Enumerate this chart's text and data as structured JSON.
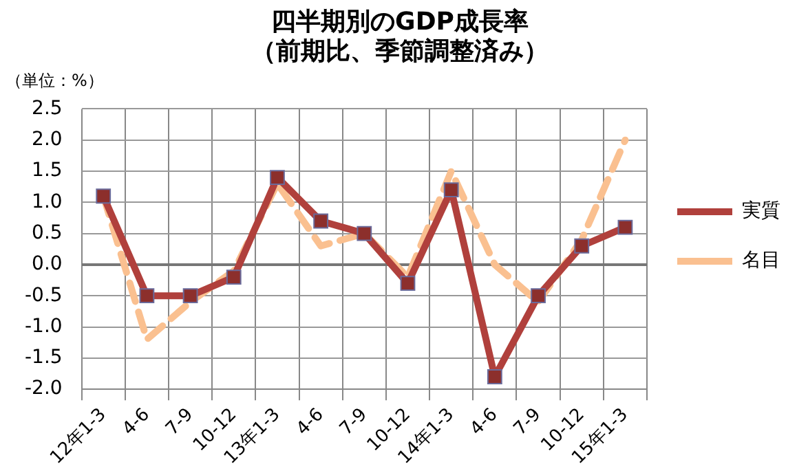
{
  "chart_data": {
    "type": "line",
    "title": "四半期別のGDP成長率",
    "subtitle": "（前期比、季節調整済み）",
    "ylabel": "（単位：%）",
    "categories": [
      "12年1-3",
      "4-6",
      "7-9",
      "10-12",
      "13年1-3",
      "4-6",
      "7-9",
      "10-12",
      "14年1-3",
      "4-6",
      "7-9",
      "10-12",
      "15年1-3"
    ],
    "series": [
      {
        "name": "実質",
        "color": "#b0403c",
        "marker": "square",
        "line_style": "solid",
        "values": [
          1.1,
          -0.5,
          -0.5,
          -0.2,
          1.4,
          0.7,
          0.5,
          -0.3,
          1.2,
          -1.8,
          -0.5,
          0.3,
          0.6
        ]
      },
      {
        "name": "名目",
        "color": "#fac090",
        "marker": "none",
        "line_style": "dashed",
        "values": [
          1.1,
          -1.2,
          -0.6,
          -0.1,
          1.3,
          0.3,
          0.5,
          -0.2,
          1.5,
          0.0,
          -0.6,
          0.4,
          2.0
        ]
      }
    ],
    "ylim": [
      -2.0,
      2.5
    ],
    "yticks": [
      {
        "value": -2,
        "label": "-2.0"
      },
      {
        "value": -1.5,
        "label": "-1.5"
      },
      {
        "value": -1,
        "label": "-1.0"
      },
      {
        "value": -0.5,
        "label": "-0.5"
      },
      {
        "value": 0,
        "label": "0.0"
      },
      {
        "value": 0.5,
        "label": "0.5"
      },
      {
        "value": 1,
        "label": "1.0"
      },
      {
        "value": 1.5,
        "label": "1.5"
      },
      {
        "value": 2,
        "label": "2.0"
      },
      {
        "value": 2.5,
        "label": "2.5"
      }
    ],
    "grid": true,
    "legend": "right"
  }
}
